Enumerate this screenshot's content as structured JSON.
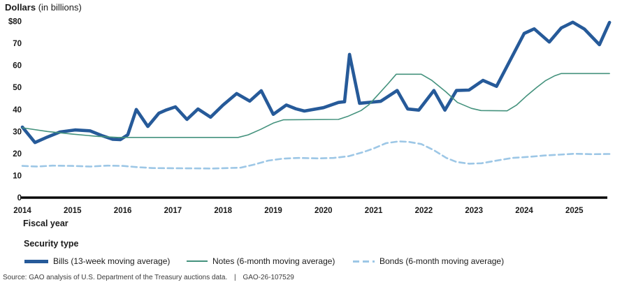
{
  "header": {
    "title_primary": "Dollars",
    "title_secondary": "(in billions)"
  },
  "chart_data": {
    "type": "line",
    "title": "Dollars (in billions)",
    "xlabel": "Fiscal year",
    "ylabel": "Dollars in billions",
    "xlim": [
      2014,
      2025.75
    ],
    "ylim": [
      0,
      80
    ],
    "grid": false,
    "legend_position": "bottom",
    "x_ticks": [
      2014,
      2015,
      2016,
      2017,
      2018,
      2019,
      2020,
      2021,
      2022,
      2023,
      2024,
      2025
    ],
    "y_ticks": [
      {
        "label": "$80",
        "value": 80
      },
      {
        "label": "70",
        "value": 70
      },
      {
        "label": "60",
        "value": 60
      },
      {
        "label": "50",
        "value": 50
      },
      {
        "label": "40",
        "value": 40
      },
      {
        "label": "30",
        "value": 30
      },
      {
        "label": "20",
        "value": 20
      },
      {
        "label": "10",
        "value": 10
      },
      {
        "label": "0",
        "value": 0
      }
    ],
    "series": [
      {
        "name": "Bills (13-week moving average)",
        "color": "#265a99",
        "width": 4.6,
        "dash": null,
        "points": [
          [
            2014,
            32
          ],
          [
            2014.25,
            25
          ],
          [
            2014.5,
            27.5
          ],
          [
            2014.75,
            29.8
          ],
          [
            2015.05,
            30.7
          ],
          [
            2015.35,
            30.3
          ],
          [
            2015.6,
            28
          ],
          [
            2015.8,
            26.5
          ],
          [
            2015.95,
            26.3
          ],
          [
            2016.1,
            28.5
          ],
          [
            2016.27,
            40
          ],
          [
            2016.5,
            32.3
          ],
          [
            2016.72,
            38.3
          ],
          [
            2016.87,
            39.8
          ],
          [
            2017.05,
            41.2
          ],
          [
            2017.28,
            35.5
          ],
          [
            2017.5,
            40.2
          ],
          [
            2017.75,
            36.5
          ],
          [
            2018.0,
            42
          ],
          [
            2018.27,
            47.2
          ],
          [
            2018.53,
            43.8
          ],
          [
            2018.76,
            48.5
          ],
          [
            2019.0,
            37.8
          ],
          [
            2019.26,
            42
          ],
          [
            2019.45,
            40.3
          ],
          [
            2019.62,
            39.3
          ],
          [
            2020.0,
            40.8
          ],
          [
            2020.3,
            43.2
          ],
          [
            2020.42,
            43.5
          ],
          [
            2020.52,
            65
          ],
          [
            2020.72,
            42.8
          ],
          [
            2021.14,
            43.7
          ],
          [
            2021.47,
            48.6
          ],
          [
            2021.68,
            40.2
          ],
          [
            2021.9,
            39.7
          ],
          [
            2022.2,
            48.6
          ],
          [
            2022.42,
            39.7
          ],
          [
            2022.65,
            48.6
          ],
          [
            2022.9,
            48.8
          ],
          [
            2023.18,
            53.2
          ],
          [
            2023.45,
            50.5
          ],
          [
            2024.0,
            74.5
          ],
          [
            2024.2,
            76.6
          ],
          [
            2024.5,
            70.6
          ],
          [
            2024.74,
            77
          ],
          [
            2024.97,
            79.6
          ],
          [
            2025.2,
            76.5
          ],
          [
            2025.5,
            69.4
          ],
          [
            2025.7,
            79.5
          ]
        ]
      },
      {
        "name": "Notes (6-month moving average)",
        "color": "#44927d",
        "width": 1.6,
        "dash": null,
        "points": [
          [
            2014,
            31.7
          ],
          [
            2014.5,
            30
          ],
          [
            2015,
            28.8
          ],
          [
            2015.5,
            27.8
          ],
          [
            2015.9,
            27.3
          ],
          [
            2018.3,
            27.3
          ],
          [
            2018.5,
            28.5
          ],
          [
            2018.75,
            31
          ],
          [
            2019.0,
            33.8
          ],
          [
            2019.2,
            35.3
          ],
          [
            2020.3,
            35.5
          ],
          [
            2020.5,
            37
          ],
          [
            2020.75,
            39.5
          ],
          [
            2020.9,
            42
          ],
          [
            2021.1,
            47
          ],
          [
            2021.3,
            52
          ],
          [
            2021.45,
            56
          ],
          [
            2021.95,
            56
          ],
          [
            2022.16,
            53.2
          ],
          [
            2022.44,
            48
          ],
          [
            2022.67,
            43.2
          ],
          [
            2022.95,
            40.5
          ],
          [
            2023.14,
            39.5
          ],
          [
            2023.66,
            39.4
          ],
          [
            2023.85,
            42
          ],
          [
            2024.04,
            46
          ],
          [
            2024.25,
            50
          ],
          [
            2024.42,
            53
          ],
          [
            2024.6,
            55.2
          ],
          [
            2024.74,
            56.3
          ],
          [
            2025.7,
            56.3
          ]
        ]
      },
      {
        "name": "Bonds (6-month moving average)",
        "color": "#9dc7e6",
        "width": 2.6,
        "dash": "8 5",
        "points": [
          [
            2014,
            14.4
          ],
          [
            2014.3,
            14.1
          ],
          [
            2014.6,
            14.5
          ],
          [
            2015,
            14.4
          ],
          [
            2015.35,
            14.1
          ],
          [
            2015.7,
            14.5
          ],
          [
            2016,
            14.4
          ],
          [
            2016.3,
            13.8
          ],
          [
            2016.6,
            13.4
          ],
          [
            2017.2,
            13.3
          ],
          [
            2017.8,
            13.2
          ],
          [
            2018.35,
            13.6
          ],
          [
            2018.6,
            14.9
          ],
          [
            2018.9,
            16.8
          ],
          [
            2019.2,
            17.7
          ],
          [
            2019.5,
            18
          ],
          [
            2019.9,
            17.8
          ],
          [
            2020.2,
            18
          ],
          [
            2020.5,
            18.8
          ],
          [
            2020.8,
            20.7
          ],
          [
            2021,
            22.3
          ],
          [
            2021.25,
            24.7
          ],
          [
            2021.5,
            25.5
          ],
          [
            2021.7,
            25.3
          ],
          [
            2021.95,
            24.3
          ],
          [
            2022.2,
            21.5
          ],
          [
            2022.45,
            18
          ],
          [
            2022.65,
            16.2
          ],
          [
            2022.9,
            15.4
          ],
          [
            2023.15,
            15.6
          ],
          [
            2023.4,
            16.6
          ],
          [
            2023.76,
            18
          ],
          [
            2024.1,
            18.5
          ],
          [
            2024.4,
            19.1
          ],
          [
            2024.7,
            19.5
          ],
          [
            2025,
            19.9
          ],
          [
            2025.35,
            19.7
          ],
          [
            2025.7,
            19.8
          ]
        ]
      }
    ]
  },
  "legend": {
    "heading": "Security type"
  },
  "source": {
    "text": "Source: GAO analysis of U.S. Department of the Treasury auctions data.",
    "separator": "|",
    "report_id": "GAO-26-107529"
  }
}
